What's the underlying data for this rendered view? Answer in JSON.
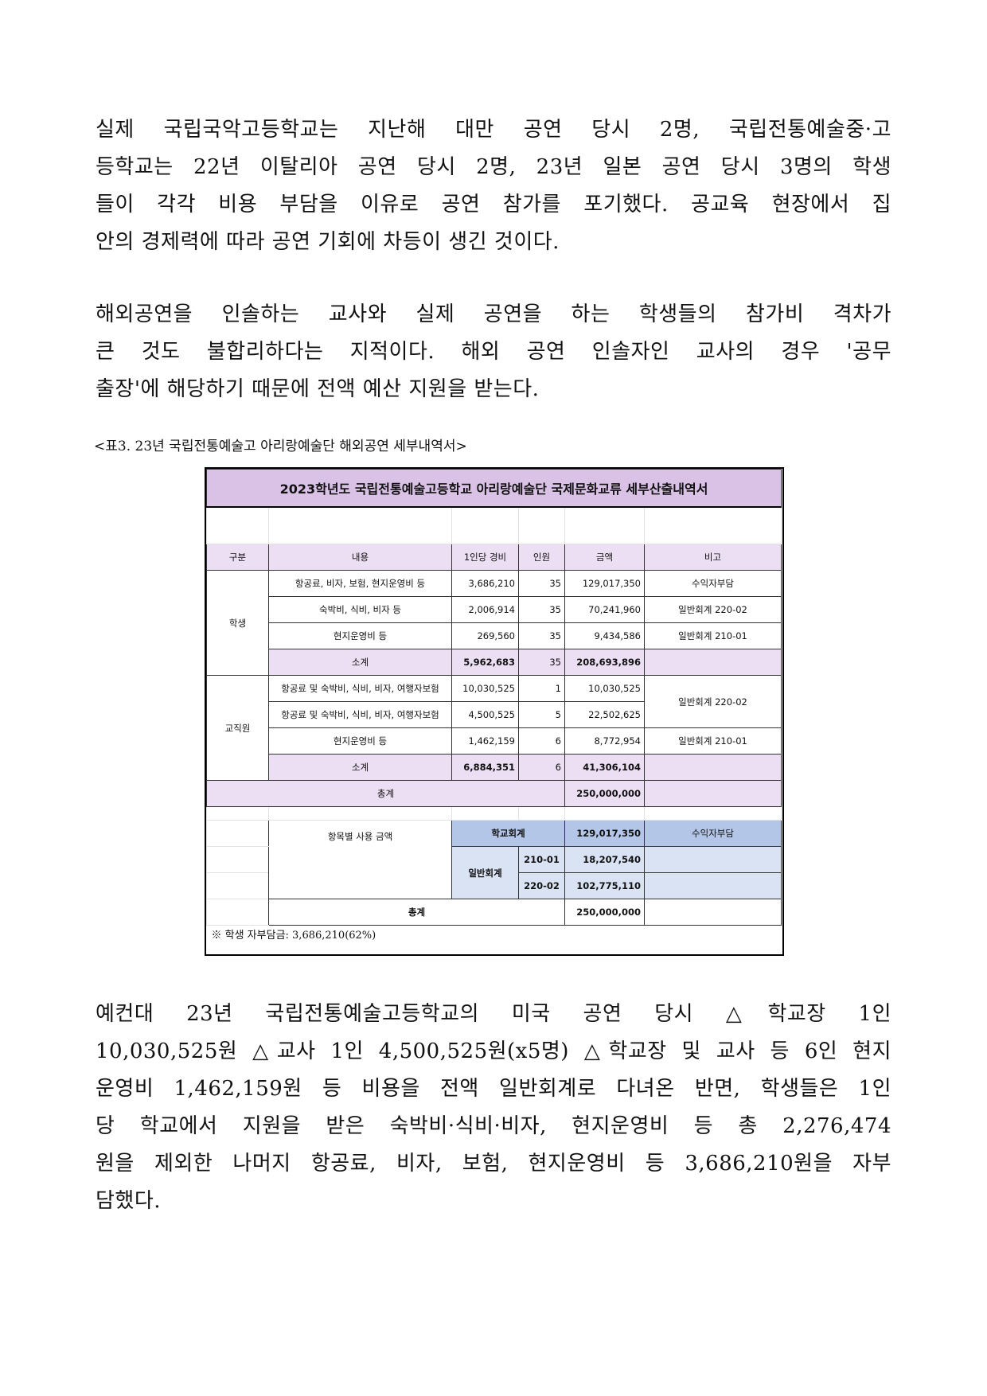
{
  "paragraph1": [
    "실제 국립국악고등학교는 지난해 대만 공연 당시 2명, 국립전통예술중·고",
    "등학교는 22년 이탈리아 공연 당시 2명, 23년 일본 공연 당시 3명의 학생",
    "들이 각각 비용 부담을 이유로 공연 참가를 포기했다. 공교육 현장에서 집",
    "안의 경제력에 따라 공연 기회에 차등이 생긴 것이다."
  ],
  "paragraph2": [
    "해외공연을 인솔하는 교사와 실제 공연을 하는 학생들의 참가비 격차가",
    "큰 것도 불합리하다는 지적이다. 해외 공연 인솔자인 교사의 경우 '공무",
    "출장'에 해당하기 때문에 전액 예산 지원을 받는다."
  ],
  "caption": "<표3. 23년 국립전통예술고 아리랑예술단 해외공연 세부내역서>",
  "table": {
    "title": "2023학년도 국립전통예술고등학교 아리랑예술단 국제문화교류 세부산출내역서",
    "headers": [
      "구분",
      "내용",
      "1인당 경비",
      "인원",
      "금액",
      "비고"
    ],
    "student_label": "학생",
    "student_rows": [
      [
        "항공료, 비자, 보험, 현지운영비 등",
        "3,686,210",
        "35",
        "129,017,350",
        "수익자부담"
      ],
      [
        "숙박비, 식비, 비자 등",
        "2,006,914",
        "35",
        "70,241,960",
        "일반회계 220-02"
      ],
      [
        "현지운영비 등",
        "269,560",
        "35",
        "9,434,586",
        "일반회계 210-01"
      ]
    ],
    "student_subtotal": [
      "소계",
      "5,962,683",
      "35",
      "208,693,896"
    ],
    "staff_label": "교직원",
    "staff_rows": [
      [
        "항공료 및 숙박비, 식비, 비자, 여행자보험",
        "10,030,525",
        "1",
        "10,030,525"
      ],
      [
        "항공료 및 숙박비, 식비, 비자, 여행자보험",
        "4,500,525",
        "5",
        "22,502,625"
      ],
      [
        "현지운영비 등",
        "1,462,159",
        "6",
        "8,772,954",
        "일반회계 210-01"
      ]
    ],
    "staff_note_merged": "일반회계 220-02",
    "staff_subtotal": [
      "소계",
      "6,884,351",
      "6",
      "41,306,104"
    ],
    "total_label": "총계",
    "total": "250,000,000",
    "summary": {
      "label": "항목별 사용 금액",
      "school_label": "학교회계",
      "school_amount": "129,017,350",
      "school_note": "수익자부담",
      "general_label": "일반회계",
      "general_rows": [
        [
          "210-01",
          "18,207,540"
        ],
        [
          "220-02",
          "102,775,110"
        ]
      ],
      "total_label": "총계",
      "total": "250,000,000"
    },
    "footnote": "※ 학생 자부담금: 3,686,210(62%)"
  },
  "paragraph3": [
    "예컨대 23년 국립전통예술고등학교의 미국 공연 당시 △학교장 1인",
    "10,030,525원 △교사 1인 4,500,525원(x5명) △학교장 및 교사 등 6인 현지",
    "운영비 1,462,159원 등 비용을 전액 일반회계로 다녀온 반면, 학생들은 1인",
    "당 학교에서 지원을 받은 숙박비·식비·비자, 현지운영비 등 총 2,276,474",
    "원을 제외한 나머지 항공료, 비자, 보험, 현지운영비 등 3,686,210원을 자부",
    "담했다."
  ],
  "colors": {
    "title_bg": "#d9c2e6",
    "header_bg": "#ecdff3",
    "school_bg": "#b4c6e7",
    "general_bg": "#dae3f3"
  }
}
